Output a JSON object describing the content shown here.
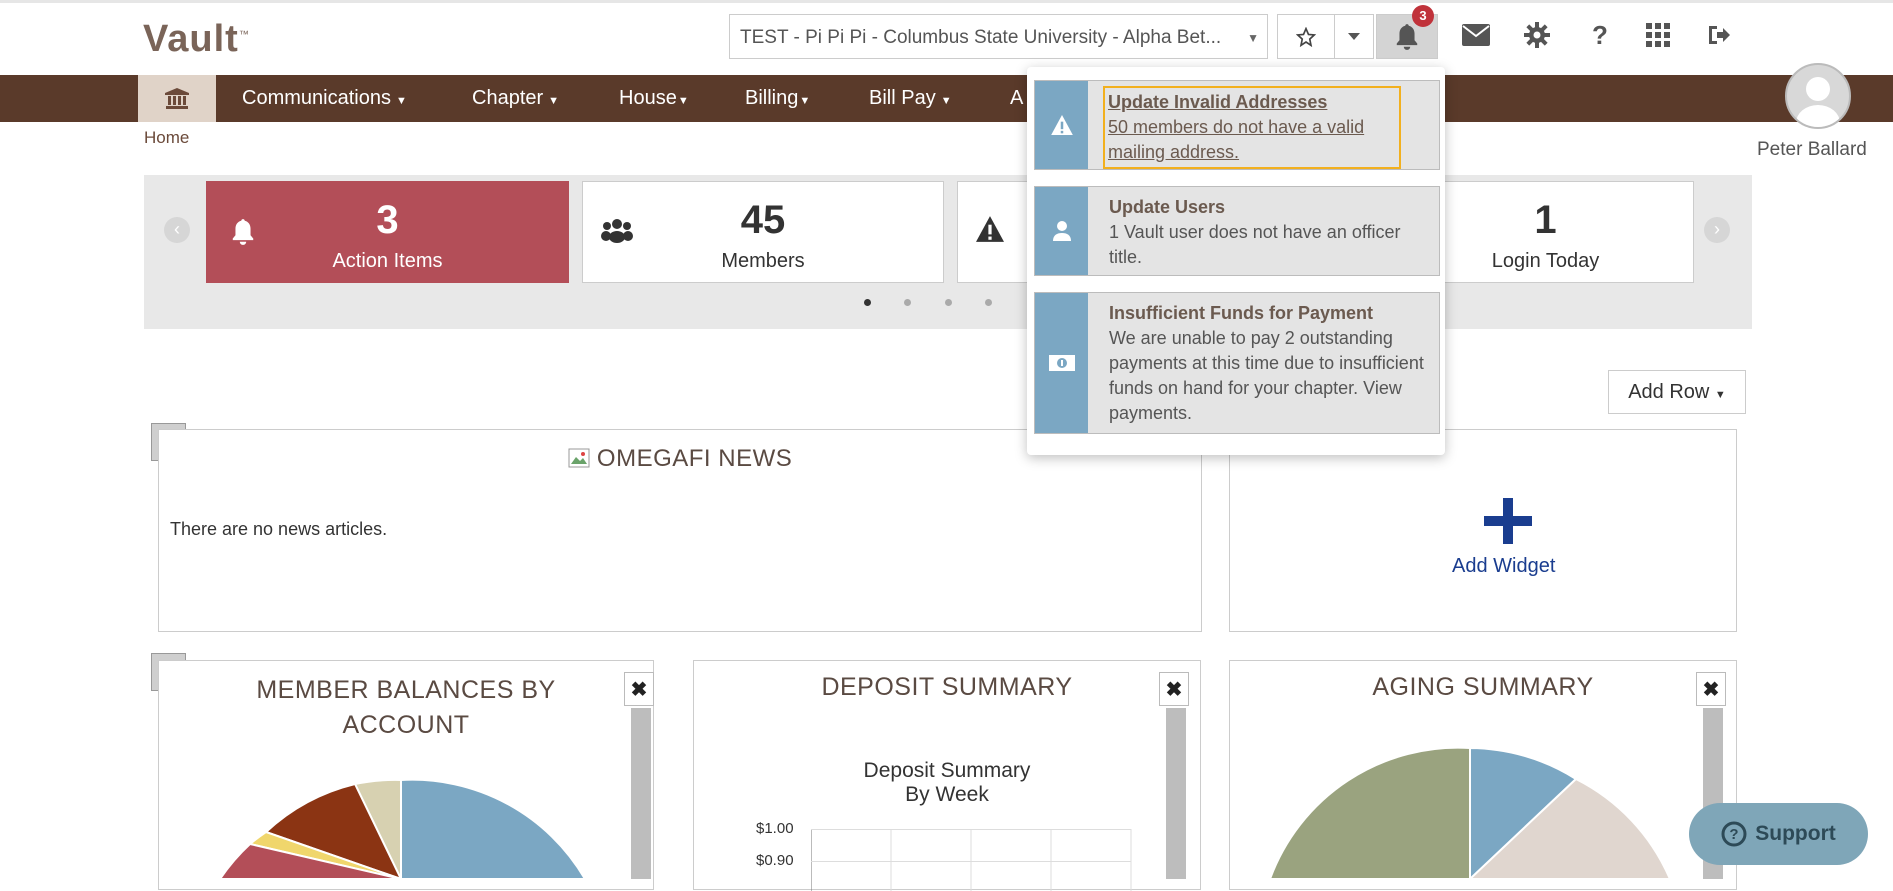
{
  "app": {
    "logo": "Vault",
    "logo_mark": "™"
  },
  "header": {
    "chapter_select_value": "TEST - Pi Pi Pi - Columbus State University - Alpha Bet...",
    "notification_count": "3"
  },
  "nav": {
    "items": [
      {
        "label": "Communications"
      },
      {
        "label": "Chapter"
      },
      {
        "label": "House"
      },
      {
        "label": "Billing"
      },
      {
        "label": "Bill Pay"
      },
      {
        "label": "A"
      }
    ]
  },
  "user": {
    "name": "Peter Ballard"
  },
  "breadcrumb": {
    "home": "Home"
  },
  "stats": [
    {
      "value": "3",
      "label": "Action Items",
      "icon": "bell-icon"
    },
    {
      "value": "45",
      "label": "Members",
      "icon": "users-icon"
    },
    {
      "value": "",
      "label": "",
      "icon": "warning-icon"
    },
    {
      "value": "1",
      "label": "Login Today",
      "icon": ""
    }
  ],
  "add_row_label": "Add Row",
  "widgets": {
    "news": {
      "title": "OMEGAFI NEWS",
      "empty_text": "There are no news articles."
    },
    "add_widget": {
      "label": "Add Widget"
    },
    "member_balances": {
      "title_line1": "MEMBER BALANCES BY",
      "title_line2": "ACCOUNT"
    },
    "deposit_summary": {
      "title": "DEPOSIT SUMMARY",
      "chart_title_line1": "Deposit Summary",
      "chart_title_line2": "By Week",
      "y_tick_1": "$1.00",
      "y_tick_2": "$0.90"
    },
    "aging_summary": {
      "title": "AGING SUMMARY"
    }
  },
  "notifications": [
    {
      "title": "Update Invalid Addresses",
      "body": "50 members do not have a valid mailing address.",
      "icon": "warning-icon"
    },
    {
      "title": "Update Users",
      "body": "1 Vault user does not have an officer title.",
      "icon": "user-icon"
    },
    {
      "title": "Insufficient Funds for Payment",
      "body": "We are unable to pay 2 outstanding payments at this time due to insufficient funds on hand for your chapter. View payments.",
      "icon": "money-icon"
    }
  ],
  "support": {
    "label": "Support"
  },
  "colors": {
    "brand_brown": "#5a3a2a",
    "action_red": "#b34e58",
    "notif_blue": "#7ba7c3",
    "focus_yellow": "#f2b01e"
  }
}
